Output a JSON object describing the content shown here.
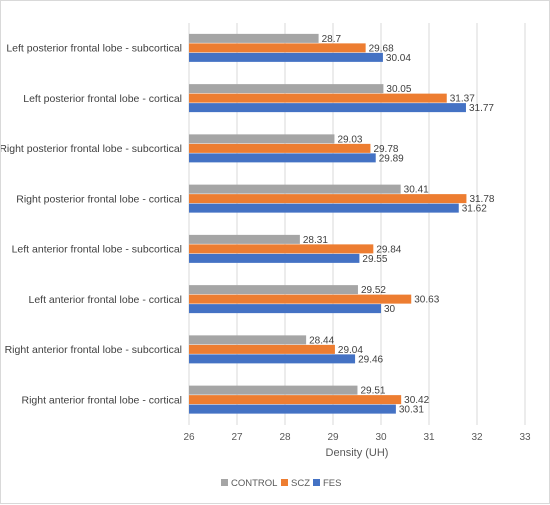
{
  "chart_data": {
    "type": "bar",
    "orientation": "horizontal",
    "categories": [
      "Left posterior frontal lobe - subcortical",
      "Left posterior frontal lobe - cortical",
      "Right posterior frontal lobe - subcortical",
      "Right posterior frontal lobe - cortical",
      "Left anterior frontal lobe - subcortical",
      "Left anterior frontal lobe - cortical",
      "Right anterior frontal lobe - subcortical",
      "Right anterior frontal lobe - cortical"
    ],
    "series": [
      {
        "name": "CONTROL",
        "color": "#a5a5a5",
        "values": [
          28.7,
          30.05,
          29.03,
          30.41,
          28.31,
          29.52,
          28.44,
          29.51
        ]
      },
      {
        "name": "SCZ",
        "color": "#ed7d31",
        "values": [
          29.68,
          31.37,
          29.78,
          31.78,
          29.84,
          30.63,
          29.04,
          30.42
        ]
      },
      {
        "name": "FES",
        "color": "#4472c4",
        "values": [
          30.04,
          31.77,
          29.89,
          31.62,
          29.55,
          30,
          29.46,
          30.31
        ]
      }
    ],
    "data_labels": [
      [
        "28.7",
        "30.05",
        "29.03",
        "30.41",
        "28.31",
        "29.52",
        "28.44",
        "29.51"
      ],
      [
        "29.68",
        "31.37",
        "29.78",
        "31.78",
        "29.84",
        "30.63",
        "29.04",
        "30.42"
      ],
      [
        "30.04",
        "31.77",
        "29.89",
        "31.62",
        "29.55",
        "30",
        "29.46",
        "30.31"
      ]
    ],
    "xlabel": "Density (UH)",
    "xlim": [
      26,
      33
    ],
    "xticks": [
      "26",
      "27",
      "28",
      "29",
      "30",
      "31",
      "32",
      "33"
    ],
    "grid": true,
    "legend_position": "bottom"
  }
}
